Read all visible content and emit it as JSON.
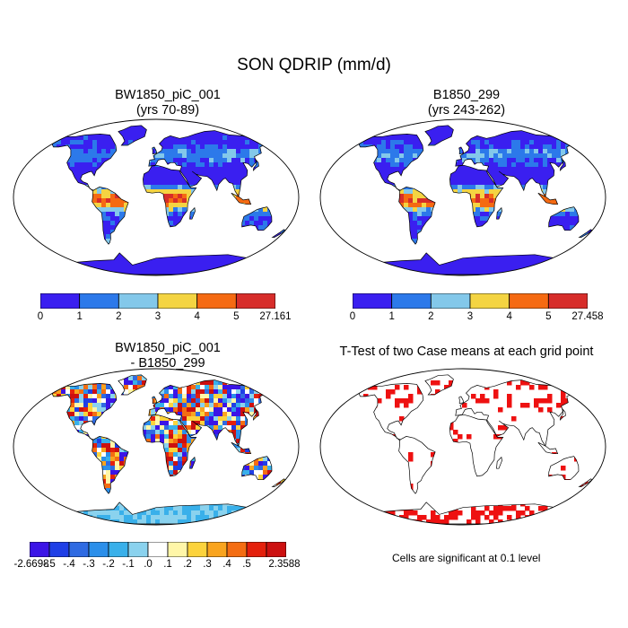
{
  "title": "SON QDRIP (mm/d)",
  "panels": [
    {
      "title_line1": "BW1850_piC_001",
      "title_line2": "(yrs 70-89)",
      "field": "wet"
    },
    {
      "title_line1": "B1850_299",
      "title_line2": "(yrs 243-262)",
      "field": "wet"
    },
    {
      "title_line1": "BW1850_piC_001",
      "title_line2": "- B1850_299",
      "field": "diff"
    },
    {
      "title_line1": "T-Test of two Case means at each grid point",
      "title_line2": "",
      "field": "sig"
    }
  ],
  "colorbars": {
    "abs1": {
      "labels": [
        "0",
        "1",
        "2",
        "3",
        "4",
        "5",
        "27.161"
      ],
      "colors": [
        "#3a1ff0",
        "#2c79ea",
        "#83c8ea",
        "#f4d442",
        "#f56a12",
        "#d72d2a"
      ]
    },
    "abs2": {
      "labels": [
        "0",
        "1",
        "2",
        "3",
        "4",
        "5",
        "27.458"
      ],
      "colors": [
        "#3a1ff0",
        "#2c79ea",
        "#83c8ea",
        "#f4d442",
        "#f56a12",
        "#d72d2a"
      ]
    },
    "diff": {
      "labels": [
        "-2.6698",
        "-.5",
        "-.4",
        "-.3",
        "-.2",
        "-.1",
        ".0",
        ".1",
        ".2",
        ".3",
        ".4",
        ".5",
        "2.3588"
      ],
      "colors": [
        "#3b14e6",
        "#1f3fe6",
        "#2f6be2",
        "#2b8fea",
        "#39b0ea",
        "#8ad2ee",
        "#ffffff",
        "#fff6a8",
        "#fcd33c",
        "#f9a41e",
        "#f46d12",
        "#e4200c",
        "#cc1010"
      ]
    }
  },
  "significance_note": "Cells are significant at 0.1 level",
  "colors": {
    "land_outline": "#000000",
    "ocean": "#ffffff",
    "significant": "#ee1111"
  }
}
